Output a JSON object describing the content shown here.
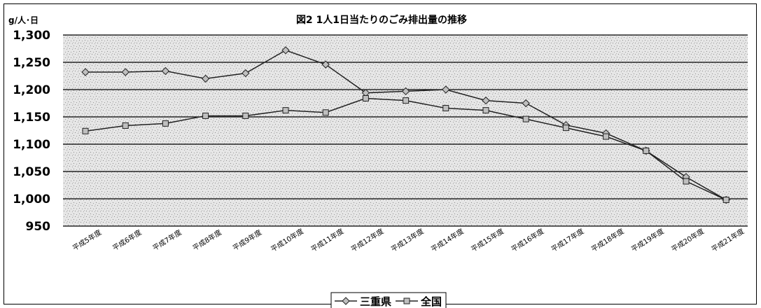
{
  "chart_data": {
    "type": "line",
    "title": "図2  1人1日当たりのごみ排出量の推移",
    "unit_label": "g/人･日",
    "ylim": [
      950,
      1300
    ],
    "yticks": [
      "950",
      "1,000",
      "1,050",
      "1,100",
      "1,150",
      "1,200",
      "1,250",
      "1,300"
    ],
    "ytick_values": [
      950,
      1000,
      1050,
      1100,
      1150,
      1200,
      1250,
      1300
    ],
    "categories": [
      "平成5年度",
      "平成6年度",
      "平成7年度",
      "平成8年度",
      "平成9年度",
      "平成10年度",
      "平成11年度",
      "平成12年度",
      "平成13年度",
      "平成14年度",
      "平成15年度",
      "平成16年度",
      "平成17年度",
      "平成18年度",
      "平成19年度",
      "平成20年度",
      "平成21年度"
    ],
    "grid": true,
    "legend_position": "bottom",
    "series": [
      {
        "name": "三重県",
        "marker": "diamond",
        "values": [
          1232,
          1232,
          1234,
          1220,
          1230,
          1272,
          1246,
          1194,
          1197,
          1200,
          1180,
          1175,
          1135,
          1120,
          1088,
          1040,
          998
        ]
      },
      {
        "name": "全国",
        "marker": "square",
        "values": [
          1124,
          1134,
          1138,
          1152,
          1152,
          1162,
          1158,
          1184,
          1180,
          1166,
          1162,
          1146,
          1130,
          1114,
          1088,
          1032,
          998
        ]
      }
    ],
    "colors": {
      "line": "#222222",
      "marker_fill": "#bfbfbf",
      "plot_bg": "#e4e4e4",
      "grid": "#000000"
    }
  }
}
